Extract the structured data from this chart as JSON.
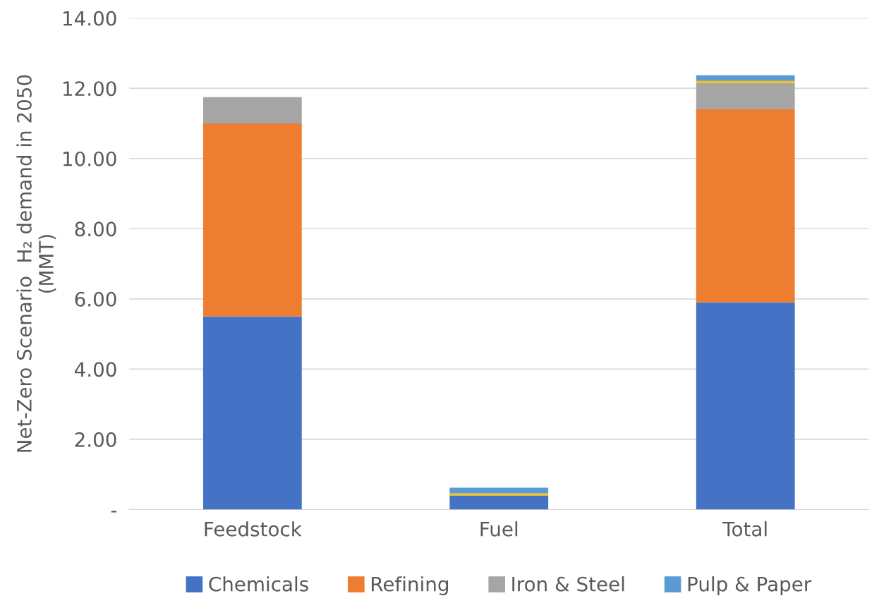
{
  "chart_data": {
    "type": "bar",
    "stacked": true,
    "ylabel": "Net-Zero Scenario  H₂ demand in 2050\n(MMT)",
    "categories": [
      "Feedstock",
      "Fuel",
      "Total"
    ],
    "series": [
      {
        "name": "Chemicals",
        "color": "#4472c4",
        "values": [
          5.5,
          0.4,
          5.9
        ]
      },
      {
        "name": "Refining",
        "color": "#ed7d31",
        "values": [
          5.5,
          null,
          5.5
        ]
      },
      {
        "name": "Iron & Steel",
        "color": "#a5a5a5",
        "values": [
          0.75,
          null,
          0.75
        ]
      },
      {
        "color": "#ffc000",
        "values": [
          null,
          0.06,
          0.06
        ]
      },
      {
        "name": "Pulp & Paper",
        "color": "#5b9bd5",
        "values": [
          null,
          0.16,
          0.16
        ]
      }
    ],
    "ylim": [
      0,
      14
    ],
    "yticks": [
      {
        "value": 0,
        "label": "-"
      },
      {
        "value": 2,
        "label": "2.00"
      },
      {
        "value": 4,
        "label": "4.00"
      },
      {
        "value": 6,
        "label": "6.00"
      },
      {
        "value": 8,
        "label": "8.00"
      },
      {
        "value": 10,
        "label": "10.00"
      },
      {
        "value": 12,
        "label": "12.00"
      },
      {
        "value": 14,
        "label": "14.00"
      }
    ],
    "grid": "y",
    "legend": "bottom"
  }
}
